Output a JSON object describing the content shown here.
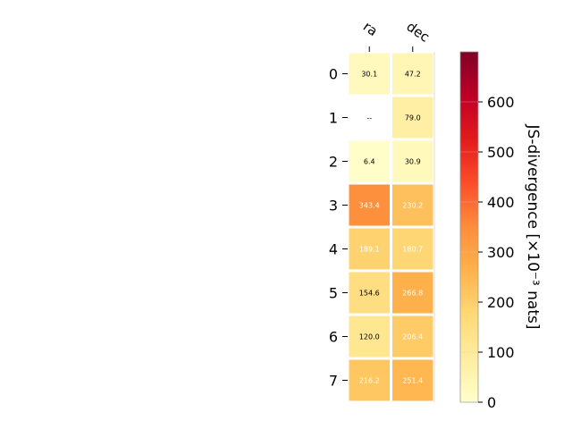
{
  "chart_data": {
    "type": "heatmap",
    "columns": [
      "ra",
      "dec"
    ],
    "rows": [
      "0",
      "1",
      "2",
      "3",
      "4",
      "5",
      "6",
      "7"
    ],
    "values": [
      [
        30.1,
        47.2
      ],
      [
        null,
        79.0
      ],
      [
        6.4,
        30.9
      ],
      [
        343.4,
        230.2
      ],
      [
        189.1,
        180.7
      ],
      [
        154.6,
        266.8
      ],
      [
        120.0,
        206.4
      ],
      [
        216.2,
        251.4
      ]
    ],
    "cell_labels": [
      [
        "30.1",
        "47.2"
      ],
      [
        "--",
        "79.0"
      ],
      [
        "6.4",
        "30.9"
      ],
      [
        "343.4",
        "230.2"
      ],
      [
        "189.1",
        "180.7"
      ],
      [
        "154.6",
        "266.8"
      ],
      [
        "120.0",
        "206.4"
      ],
      [
        "216.2",
        "251.4"
      ]
    ],
    "colorbar": {
      "label": "JS-divergence [×10⁻³ nats]",
      "range": [
        0,
        700
      ],
      "ticks": [
        "0",
        "100",
        "200",
        "300",
        "400",
        "500",
        "600"
      ],
      "colormap": "YlOrRd"
    }
  }
}
